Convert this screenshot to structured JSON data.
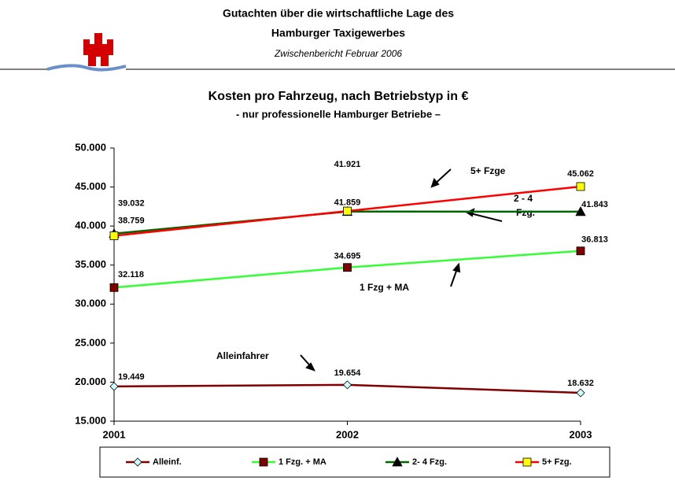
{
  "header": {
    "title_line1": "Gutachten  über die wirtschaftliche Lage des",
    "title_line2": "Hamburger Taxigewerbes",
    "subtitle": "Zwischenbericht Februar 2006"
  },
  "chart_data": {
    "type": "line",
    "title": "Kosten pro Fahrzeug, nach Betriebstyp in   €",
    "subtitle": "- nur professionelle Hamburger Betriebe   –",
    "categories": [
      "2001",
      "2002",
      "2003"
    ],
    "series": [
      {
        "name": "Alleinf.",
        "color": "#800000",
        "marker_color": "#ccffff",
        "marker": "diamond",
        "values": [
          19449,
          19654,
          18632
        ],
        "value_labels": [
          "19.449",
          "19.654",
          "18.632"
        ]
      },
      {
        "name": "1 Fzg. + MA",
        "color": "#33ff33",
        "marker_color": "#800000",
        "marker": "square",
        "values": [
          32118,
          34695,
          36813
        ],
        "value_labels": [
          "32.118",
          "34.695",
          "36.813"
        ]
      },
      {
        "name": "2- 4 Fzg.",
        "color": "#006600",
        "marker_color": "#000000",
        "marker": "triangle",
        "values": [
          39032,
          41859,
          41843
        ],
        "value_labels": [
          "39.032",
          "41.859",
          "41.843"
        ]
      },
      {
        "name": "5+ Fzg.",
        "color": "#ff0000",
        "marker_color": "#ffff00",
        "marker": "square",
        "values": [
          38759,
          41921,
          45062
        ],
        "value_labels": [
          "38.759",
          "41.921",
          "45.062"
        ]
      }
    ],
    "ylim": [
      15000,
      50000
    ],
    "yticks": [
      {
        "value": 15000,
        "label": "15.000"
      },
      {
        "value": 20000,
        "label": "20.000"
      },
      {
        "value": 25000,
        "label": "25.000"
      },
      {
        "value": 30000,
        "label": "30.000"
      },
      {
        "value": 35000,
        "label": "35.000"
      },
      {
        "value": 40000,
        "label": "40.000"
      },
      {
        "value": 45000,
        "label": "45.000"
      },
      {
        "value": 50000,
        "label": "50.000"
      }
    ],
    "grid": false,
    "legend": "bottom",
    "annotations": [
      "5+ Fzge",
      "2 - 4",
      "Fzg.",
      "1 Fzg + MA",
      "Alleinfahrer"
    ]
  }
}
